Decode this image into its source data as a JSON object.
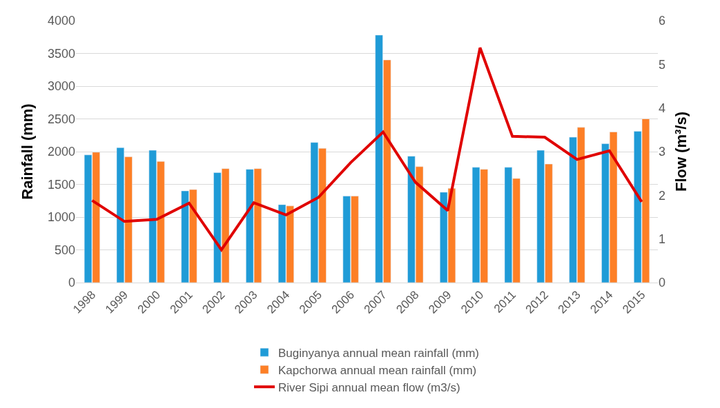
{
  "chart_data": {
    "type": "bar",
    "ylabel": "Rainfall (mm)",
    "y2label": "Flow (m³/s)",
    "categories": [
      "1998",
      "1999",
      "2000",
      "2001",
      "2002",
      "2003",
      "2004",
      "2005",
      "2006",
      "2007",
      "2008",
      "2009",
      "2010",
      "2011",
      "2012",
      "2013",
      "2014",
      "2015"
    ],
    "series": [
      {
        "name": "Buginyanya annual mean rainfall (mm)",
        "color": "#1f9bd7",
        "values": [
          1950,
          2060,
          2020,
          1400,
          1680,
          1730,
          1190,
          2140,
          1320,
          3780,
          1930,
          1380,
          1760,
          1760,
          2020,
          2220,
          2120,
          2310
        ]
      },
      {
        "name": "Kapchorwa annual mean rainfall (mm)",
        "color": "#fd7f26",
        "values": [
          1990,
          1920,
          1850,
          1420,
          1740,
          1740,
          1170,
          2050,
          1320,
          3400,
          1770,
          1440,
          1730,
          1590,
          1810,
          2370,
          2300,
          2500
        ]
      },
      {
        "name": "River Sipi annual mean flow (m3/s)",
        "type": "line",
        "axis": "y2",
        "color": "#e00000",
        "values": [
          1.88,
          1.4,
          1.45,
          1.82,
          0.75,
          1.83,
          1.55,
          1.95,
          2.75,
          3.45,
          2.3,
          1.65,
          5.38,
          3.35,
          3.33,
          2.82,
          3.02,
          1.85
        ]
      }
    ],
    "ylim": [
      0,
      4000
    ],
    "yticks": [
      0,
      500,
      1000,
      1500,
      2000,
      2500,
      3000,
      3500,
      4000
    ],
    "y2lim": [
      0,
      6
    ],
    "y2ticks": [
      0,
      1,
      2,
      3,
      4,
      5,
      6
    ],
    "grid": "y",
    "legend": "bottom",
    "marker": "none",
    "line_style": "solid"
  }
}
